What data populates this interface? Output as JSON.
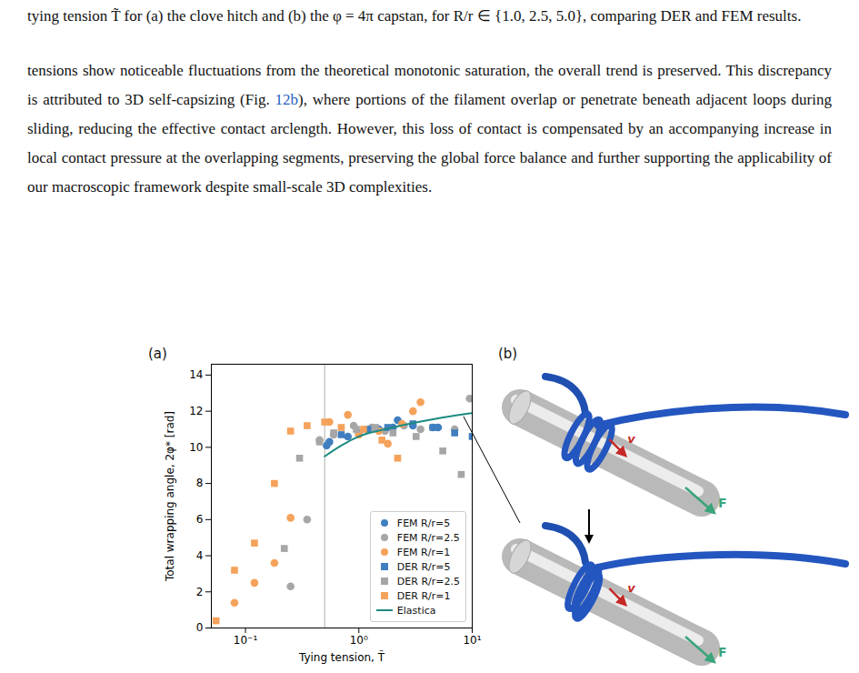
{
  "caption": "tying tension T̃ for (a) the clove hitch and (b) the φ = 4π capstan, for R/r ∈ {1.0, 2.5, 5.0}, comparing DER and FEM results.",
  "paragraph": {
    "before": "tensions show noticeable fluctuations from the theoretical monotonic saturation, the overall trend is preserved. This discrepancy is attributed to 3D self-capsizing (Fig. ",
    "link": "12b",
    "after": "), where portions of the filament overlap or penetrate beneath adjacent loops during sliding, reducing the effective contact arclength. However, this loss of contact is compensated by an accompanying increase in local contact pressure at the overlapping segments, preserving the global force balance and further supporting the applicability of our macroscopic framework despite small-scale 3D complexities."
  },
  "chart_data": {
    "type": "scatter",
    "panel_label": "(a)",
    "x_label": "Tying tension, T̃",
    "y_label": "Total wrapping angle, 2φ* [rad]",
    "log": "x",
    "xlim": [
      0.05,
      10
    ],
    "xticks": [
      {
        "value": 0.1,
        "label": "10⁻¹"
      },
      {
        "value": 1,
        "label": "10⁰"
      },
      {
        "value": 10,
        "label": "10¹"
      }
    ],
    "ylim": [
      0,
      14.6
    ],
    "yticks": [
      0,
      2,
      4,
      6,
      8,
      10,
      12,
      14
    ],
    "grid": false,
    "legend": "lower right",
    "reference_line_x": 0.5,
    "series": [
      {
        "name": "FEM R/r=5",
        "color": "#3f7fbf",
        "marker": "circle",
        "x": [
          0.52,
          0.55,
          0.8,
          1.0,
          1.5,
          2.0,
          2.2,
          3.0,
          4.5,
          5.0
        ],
        "values": [
          10.1,
          10.3,
          10.6,
          10.8,
          11.0,
          11.1,
          11.5,
          11.2,
          11.1,
          11.1
        ]
      },
      {
        "name": "FEM R/r=2.5",
        "color": "#a6a6a6",
        "marker": "circle",
        "x": [
          0.25,
          0.35,
          0.45,
          0.6,
          0.9,
          1.3,
          1.7,
          2.5,
          3.5,
          7.0,
          9.5
        ],
        "values": [
          2.3,
          6.0,
          10.4,
          10.7,
          11.2,
          11.1,
          10.9,
          11.2,
          11.0,
          11.0,
          12.7
        ]
      },
      {
        "name": "FEM R/r=1",
        "color": "#f5a25a",
        "marker": "circle",
        "x": [
          0.08,
          0.12,
          0.18,
          0.25,
          0.55,
          0.8,
          1.0,
          1.5,
          1.8,
          2.4,
          3.0,
          3.5
        ],
        "values": [
          1.4,
          2.5,
          3.6,
          6.1,
          11.4,
          11.8,
          10.7,
          10.9,
          10.2,
          11.3,
          12.0,
          12.5
        ]
      },
      {
        "name": "DER R/r=5",
        "color": "#3f7fbf",
        "marker": "square",
        "x": [
          0.7,
          1.2,
          1.8,
          3.0,
          4.5,
          7.0,
          10
        ],
        "values": [
          10.7,
          11.0,
          11.1,
          11.3,
          11.1,
          10.8,
          10.6
        ]
      },
      {
        "name": "DER R/r=2.5",
        "color": "#a6a6a6",
        "marker": "square",
        "x": [
          0.22,
          0.3,
          0.45,
          0.6,
          0.95,
          1.4,
          2.0,
          3.2,
          5.5,
          8.0
        ],
        "values": [
          4.4,
          9.4,
          10.3,
          10.8,
          11.0,
          11.1,
          10.8,
          10.6,
          9.8,
          8.5
        ]
      },
      {
        "name": "DER R/r=1",
        "color": "#f5a25a",
        "marker": "square",
        "x": [
          0.055,
          0.08,
          0.12,
          0.18,
          0.25,
          0.35,
          0.5,
          0.7,
          1.1,
          1.6,
          2.2
        ],
        "values": [
          0.4,
          3.2,
          4.7,
          8.0,
          10.9,
          11.2,
          11.4,
          11.1,
          11.0,
          10.4,
          9.4
        ]
      },
      {
        "name": "Elastica",
        "color": "#1b8a80",
        "type": "line",
        "line_style": "solid",
        "x": [
          0.5,
          0.7,
          1.0,
          2.0,
          5.0,
          10
        ],
        "values": [
          9.5,
          10.1,
          10.6,
          11.1,
          11.6,
          11.9
        ]
      }
    ]
  },
  "panel_b": {
    "panel_label": "(b)",
    "velocity_label": "v",
    "force_label": "F"
  }
}
